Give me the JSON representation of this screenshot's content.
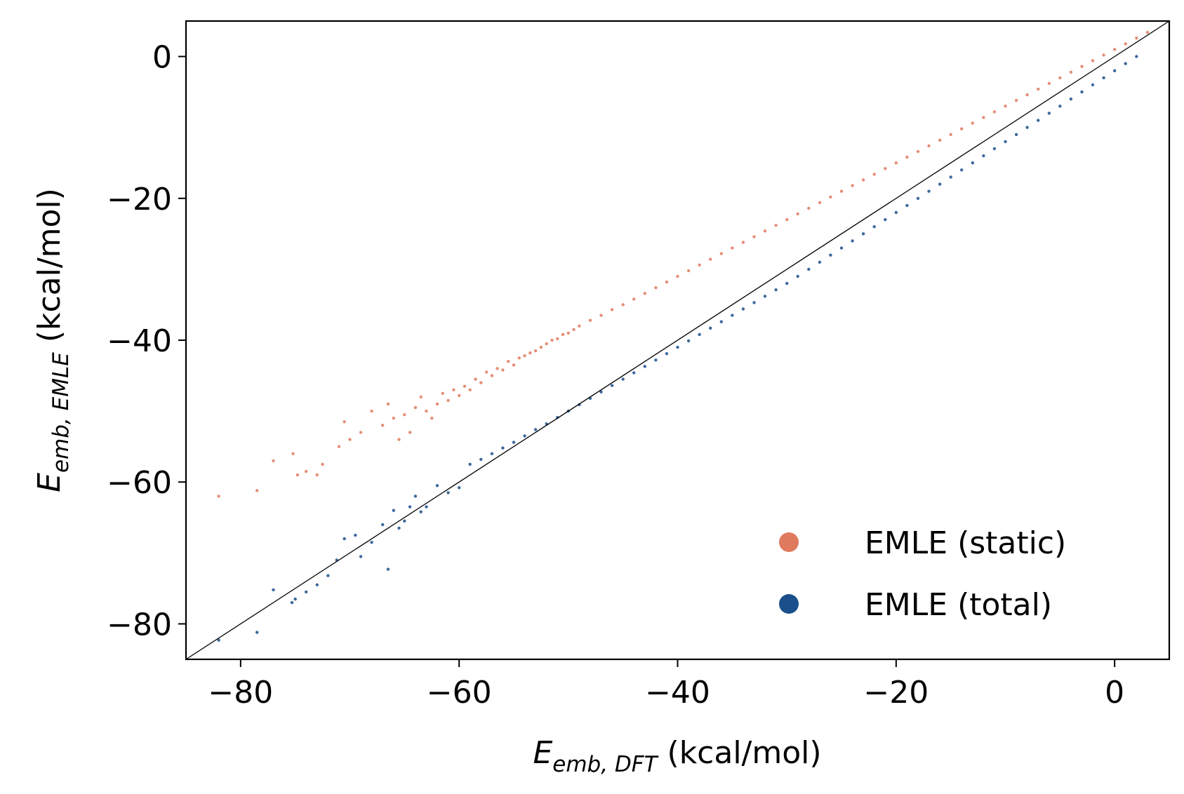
{
  "chart_data": {
    "type": "scatter",
    "title": "",
    "xlabel": {
      "main": "E",
      "sub": "emb, DFT",
      "unit": " (kcal/mol)"
    },
    "ylabel": {
      "main": "E",
      "sub": "emb, EMLE",
      "unit": " (kcal/mol)"
    },
    "xlim": [
      -85,
      5
    ],
    "ylim": [
      -85,
      5
    ],
    "xticks": [
      -80,
      -60,
      -40,
      -20,
      0
    ],
    "yticks": [
      -80,
      -60,
      -40,
      -20,
      0
    ],
    "xtick_labels": [
      "−80",
      "−60",
      "−40",
      "−20",
      "0"
    ],
    "ytick_labels": [
      "−80",
      "−60",
      "−40",
      "−20",
      "0"
    ],
    "grid": false,
    "legend_position": "bottom-right",
    "reference_line": {
      "type": "y=x",
      "color": "#000000"
    },
    "series": [
      {
        "name": "EMLE (static)",
        "color": "#e07a5f",
        "x": [
          -82,
          -78.5,
          -77,
          -75.2,
          -74.8,
          -74,
          -73,
          -72.5,
          -71,
          -70.5,
          -70,
          -69,
          -68,
          -67,
          -66.5,
          -66,
          -65.5,
          -65,
          -64.5,
          -64,
          -63.5,
          -63,
          -62.5,
          -62,
          -61.5,
          -61,
          -60.5,
          -60,
          -59.5,
          -59,
          -58.5,
          -58,
          -57.5,
          -57,
          -56.5,
          -56,
          -55.5,
          -55,
          -54.5,
          -54,
          -53.5,
          -53,
          -52.5,
          -52,
          -51.5,
          -51,
          -50.5,
          -50,
          -49.5,
          -49,
          -48,
          -47,
          -46,
          -45,
          -44,
          -43,
          -42,
          -41,
          -40,
          -39,
          -38,
          -37,
          -36,
          -35,
          -34,
          -33,
          -32,
          -31,
          -30,
          -29,
          -28,
          -27,
          -26,
          -25,
          -24,
          -23,
          -22,
          -21,
          -20,
          -19,
          -18,
          -17,
          -16,
          -15,
          -14,
          -13,
          -12,
          -11,
          -10,
          -9,
          -8,
          -7,
          -6,
          -5,
          -4,
          -3,
          -2,
          -1,
          0,
          1,
          2,
          3
        ],
        "y": [
          -62,
          -61.2,
          -57,
          -56,
          -59,
          -58.5,
          -59,
          -57.5,
          -55,
          -51.5,
          -54,
          -53,
          -50,
          -52,
          -49,
          -51,
          -54,
          -50.5,
          -53,
          -49.5,
          -48,
          -50,
          -51,
          -49,
          -47.5,
          -48.5,
          -47,
          -47.8,
          -46.5,
          -47,
          -45.5,
          -46,
          -44.5,
          -45,
          -44,
          -44.2,
          -43,
          -43.5,
          -42.5,
          -42.2,
          -41.8,
          -41.5,
          -41,
          -40.5,
          -40,
          -39.8,
          -39.2,
          -39,
          -38.5,
          -38,
          -37.2,
          -36.5,
          -35.7,
          -35,
          -34.2,
          -33.4,
          -32.6,
          -31.8,
          -31,
          -30.2,
          -29.4,
          -28.6,
          -27.8,
          -27,
          -26.2,
          -25.4,
          -24.6,
          -23.8,
          -23,
          -22.2,
          -21.4,
          -20.6,
          -19.8,
          -19,
          -18.2,
          -17.4,
          -16.6,
          -15.8,
          -15,
          -14.2,
          -13.4,
          -12.6,
          -11.8,
          -11,
          -10.2,
          -9.4,
          -8.6,
          -7.8,
          -7,
          -6.2,
          -5.4,
          -4.6,
          -3.8,
          -3,
          -2.2,
          -1.4,
          -0.6,
          0.2,
          1,
          1.8,
          2.6,
          3.4
        ]
      },
      {
        "name": "EMLE (total)",
        "color": "#1a4f8b",
        "x": [
          -82,
          -78.5,
          -77,
          -75.3,
          -75,
          -74,
          -73,
          -72,
          -71.2,
          -70.5,
          -69.5,
          -69,
          -68,
          -67,
          -66.5,
          -66,
          -65.5,
          -65,
          -64.5,
          -64,
          -63.5,
          -63,
          -62,
          -61,
          -60,
          -59,
          -58,
          -57,
          -56,
          -55,
          -54,
          -53,
          -52,
          -51,
          -50,
          -49,
          -48,
          -47,
          -46,
          -45,
          -44,
          -43,
          -42,
          -41,
          -40,
          -39,
          -38,
          -37,
          -36,
          -35,
          -34,
          -33,
          -32,
          -31,
          -30,
          -29,
          -28,
          -27,
          -26,
          -25,
          -24,
          -23,
          -22,
          -21,
          -20,
          -19,
          -18,
          -17,
          -16,
          -15,
          -14,
          -13,
          -12,
          -11,
          -10,
          -9,
          -8,
          -7,
          -6,
          -5,
          -4,
          -3,
          -2,
          -1,
          0,
          1,
          2
        ],
        "y": [
          -82.3,
          -81.2,
          -75.2,
          -77,
          -76.5,
          -75.5,
          -74.5,
          -73.2,
          -71,
          -68,
          -67.5,
          -70.5,
          -68.5,
          -66,
          -72.3,
          -64,
          -66.5,
          -65.5,
          -63.5,
          -62,
          -64.2,
          -63.5,
          -60.5,
          -61.5,
          -60.8,
          -57.5,
          -56.8,
          -56,
          -55.2,
          -54.4,
          -53.5,
          -52.6,
          -51.8,
          -50.9,
          -50,
          -49.1,
          -48.2,
          -47.3,
          -46.4,
          -45.5,
          -44.6,
          -43.7,
          -42.8,
          -41.9,
          -41,
          -40.1,
          -39.2,
          -38.3,
          -37.4,
          -36.5,
          -35.6,
          -34.7,
          -33.8,
          -32.9,
          -32,
          -31,
          -30,
          -29,
          -28,
          -27,
          -26,
          -25,
          -24,
          -23,
          -22,
          -21,
          -20,
          -19,
          -18,
          -17,
          -16,
          -15,
          -14,
          -13,
          -12,
          -11,
          -10,
          -9,
          -8,
          -7,
          -6,
          -5,
          -4,
          -3,
          -2,
          -1,
          0
        ]
      }
    ]
  }
}
